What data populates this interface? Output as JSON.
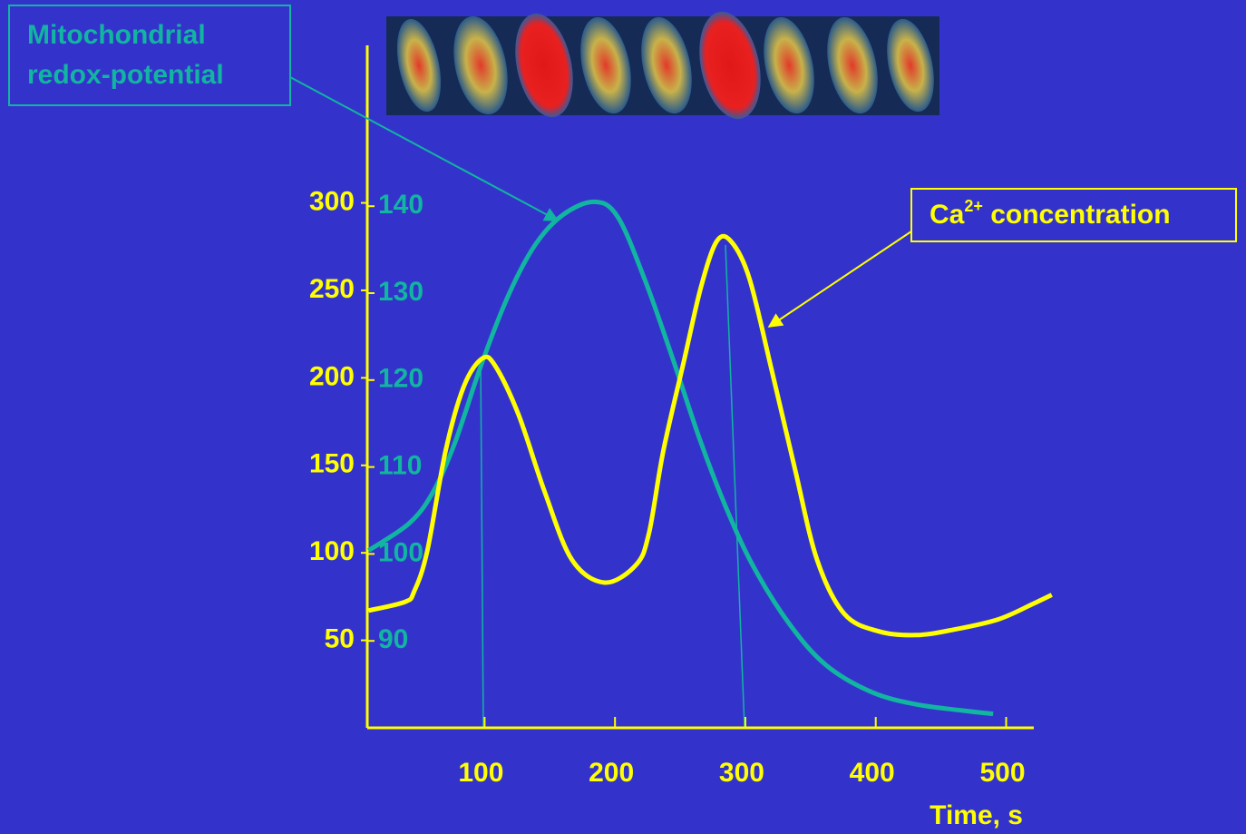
{
  "chart_data": {
    "type": "line",
    "xlabel": "Time, s",
    "xlim": [
      10,
      540
    ],
    "xticks": [
      100,
      200,
      300,
      400,
      500
    ],
    "ylim": [
      0,
      390
    ],
    "yticks": [
      50,
      100,
      150,
      200,
      250,
      300
    ],
    "y2lim": [
      80,
      158.5
    ],
    "y2ticks": [
      90,
      100,
      110,
      120,
      130,
      140
    ],
    "axis_color": "#ffff00",
    "series": [
      {
        "color": "#ffff00",
        "axis": "y",
        "x": [
          11,
          39,
          46,
          56,
          70,
          84,
          98,
          108,
          126,
          146,
          167,
          192,
          216,
          226,
          237,
          253,
          266,
          278,
          289,
          303,
          320,
          338,
          355,
          376,
          403,
          431,
          459,
          494,
          521,
          535
        ],
        "values": [
          67,
          72,
          78,
          101,
          158,
          195,
          211,
          207,
          179,
          135,
          96,
          83,
          93,
          111,
          158,
          210,
          252,
          278,
          278,
          257,
          205,
          148,
          96,
          65,
          55,
          53,
          56,
          62,
          71,
          76
        ]
      },
      {
        "color": "#11b5a0",
        "axis": "y2",
        "x": [
          11,
          42,
          60,
          77,
          98,
          119,
          139,
          160,
          184,
          202,
          223,
          244,
          265,
          285,
          306,
          334,
          362,
          397,
          431,
          466,
          490
        ],
        "values": [
          100.4,
          103.5,
          107,
          112.7,
          122,
          130,
          135.6,
          139,
          140.5,
          138.8,
          131.5,
          122.6,
          113.2,
          105.4,
          98.6,
          91.9,
          87.2,
          84.1,
          82.7,
          82,
          81.6
        ]
      }
    ],
    "annotations": [
      {
        "lines": [
          "Mitochondrial",
          "redox-potential"
        ]
      },
      {
        "parts": [
          "Ca",
          "2+",
          " concentration"
        ]
      }
    ]
  }
}
